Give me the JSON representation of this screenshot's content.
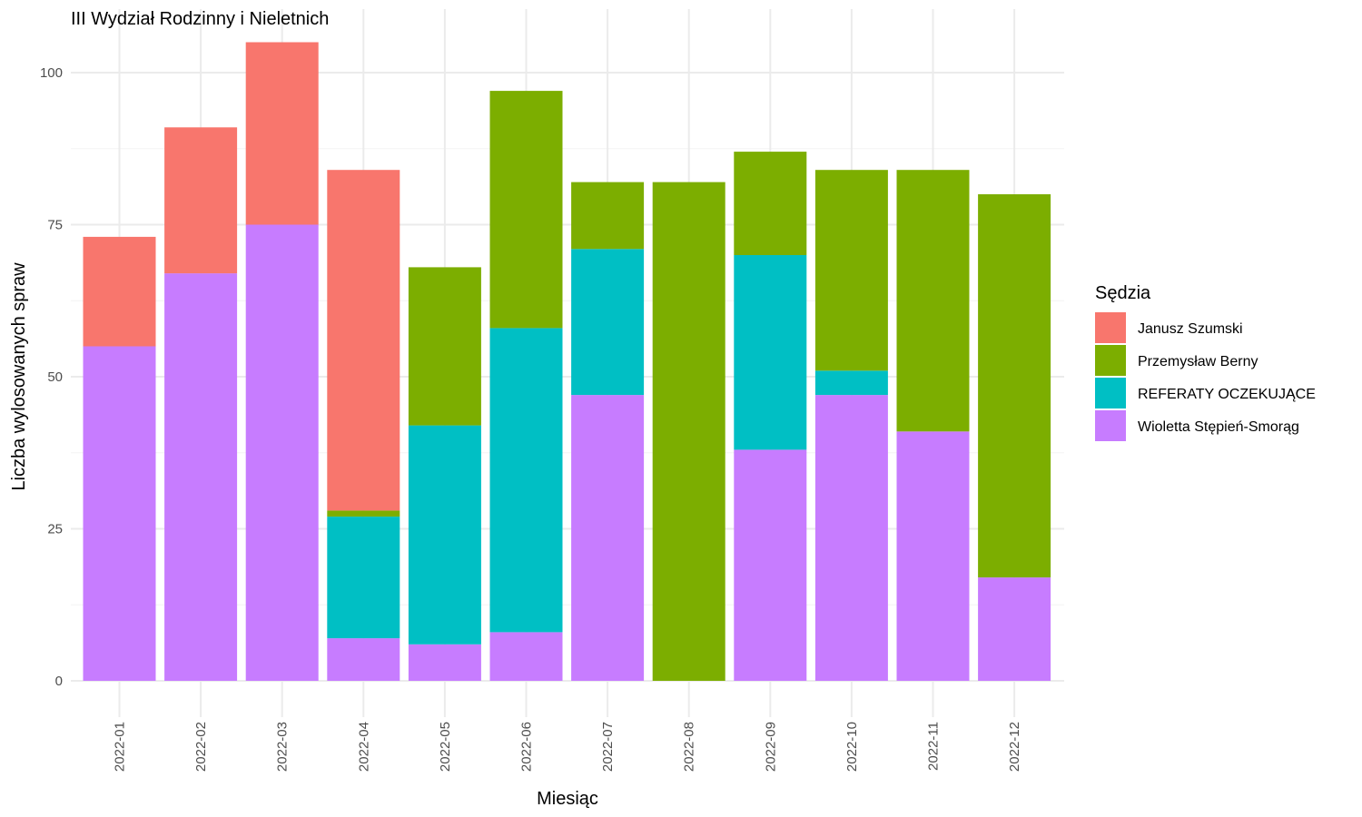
{
  "chart_data": {
    "type": "bar",
    "stacked": true,
    "title": "III Wydział Rodzinny i Nieletnich",
    "xlabel": "Miesiąc",
    "ylabel": "Liczba wylosowanych spraw",
    "ylim": [
      0,
      105
    ],
    "yticks": [
      0,
      25,
      50,
      75,
      100
    ],
    "grid": true,
    "legend_position": "right",
    "legend_title": "Sędzia",
    "categories": [
      "2022-01",
      "2022-02",
      "2022-03",
      "2022-04",
      "2022-05",
      "2022-06",
      "2022-07",
      "2022-08",
      "2022-09",
      "2022-10",
      "2022-11",
      "2022-12"
    ],
    "series": [
      {
        "name": "Wioletta Stępień-Smorąg",
        "color": "#C77CFF",
        "values": [
          55,
          67,
          75,
          7,
          6,
          8,
          47,
          0,
          38,
          47,
          41,
          17
        ]
      },
      {
        "name": "REFERATY OCZEKUJĄCE",
        "color": "#00BFC4",
        "values": [
          0,
          0,
          0,
          20,
          36,
          50,
          24,
          0,
          32,
          4,
          0,
          0
        ]
      },
      {
        "name": "Przemysław Berny",
        "color": "#7CAE00",
        "values": [
          0,
          0,
          0,
          1,
          26,
          39,
          11,
          82,
          17,
          33,
          43,
          63
        ]
      },
      {
        "name": "Janusz Szumski",
        "color": "#F8766D",
        "values": [
          18,
          24,
          30,
          56,
          0,
          0,
          0,
          0,
          0,
          0,
          0,
          0
        ]
      }
    ],
    "legend_order": [
      "Janusz Szumski",
      "Przemysław Berny",
      "REFERATY OCZEKUJĄCE",
      "Wioletta Stępień-Smorąg"
    ]
  }
}
